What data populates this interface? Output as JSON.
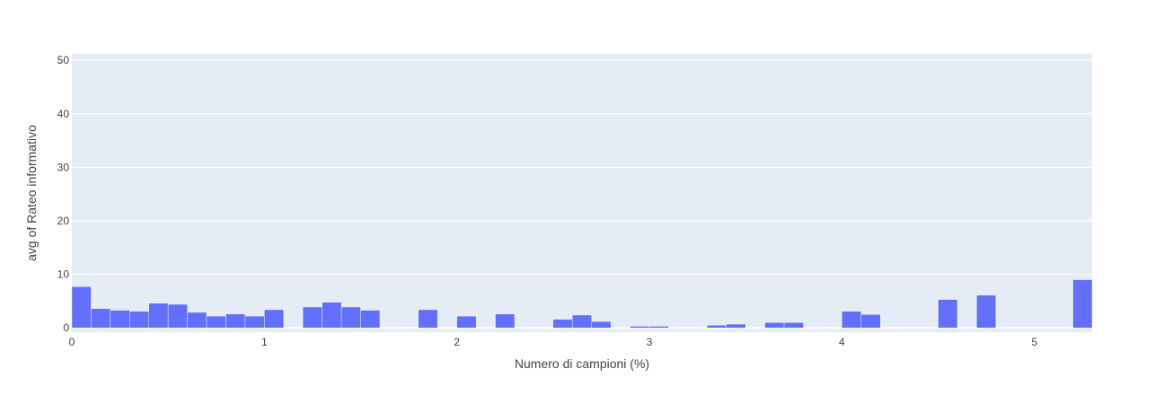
{
  "chart_data": {
    "type": "bar",
    "title": "",
    "xlabel": "Numero di campioni (%)",
    "ylabel": "avg of Rateo informativo",
    "xlim": [
      0,
      5.3
    ],
    "ylim": [
      -0.8,
      51.2
    ],
    "xticks": [
      0,
      1,
      2,
      3,
      4,
      5
    ],
    "yticks": [
      0,
      10,
      20,
      30,
      40,
      50
    ],
    "bin_width": 0.1,
    "grid": true,
    "legend": "none",
    "colors": {
      "bar": "#636efa",
      "plot_bg": "#e5ecf6",
      "grid": "#ffffff",
      "paper_bg": "#ffffff"
    },
    "bins": [
      {
        "x0": 0.0,
        "value": 7.7
      },
      {
        "x0": 0.1,
        "value": 3.6
      },
      {
        "x0": 0.2,
        "value": 3.3
      },
      {
        "x0": 0.3,
        "value": 3.1
      },
      {
        "x0": 0.4,
        "value": 4.6
      },
      {
        "x0": 0.5,
        "value": 4.4
      },
      {
        "x0": 0.6,
        "value": 2.9
      },
      {
        "x0": 0.7,
        "value": 2.2
      },
      {
        "x0": 0.8,
        "value": 2.6
      },
      {
        "x0": 0.9,
        "value": 2.2
      },
      {
        "x0": 1.0,
        "value": 3.4
      },
      {
        "x0": 1.2,
        "value": 3.9
      },
      {
        "x0": 1.3,
        "value": 4.8
      },
      {
        "x0": 1.4,
        "value": 3.9
      },
      {
        "x0": 1.5,
        "value": 3.3
      },
      {
        "x0": 1.8,
        "value": 3.4
      },
      {
        "x0": 2.0,
        "value": 2.2
      },
      {
        "x0": 2.2,
        "value": 2.6
      },
      {
        "x0": 2.5,
        "value": 1.6
      },
      {
        "x0": 2.6,
        "value": 2.4
      },
      {
        "x0": 2.7,
        "value": 1.2
      },
      {
        "x0": 2.9,
        "value": 0.3
      },
      {
        "x0": 3.0,
        "value": 0.3
      },
      {
        "x0": 3.3,
        "value": 0.5
      },
      {
        "x0": 3.4,
        "value": 0.7
      },
      {
        "x0": 3.6,
        "value": 1.0
      },
      {
        "x0": 3.7,
        "value": 1.0
      },
      {
        "x0": 4.0,
        "value": 3.1
      },
      {
        "x0": 4.1,
        "value": 2.5
      },
      {
        "x0": 4.5,
        "value": 5.3
      },
      {
        "x0": 4.7,
        "value": 6.1
      },
      {
        "x0": 5.2,
        "value": 9.0
      }
    ]
  }
}
